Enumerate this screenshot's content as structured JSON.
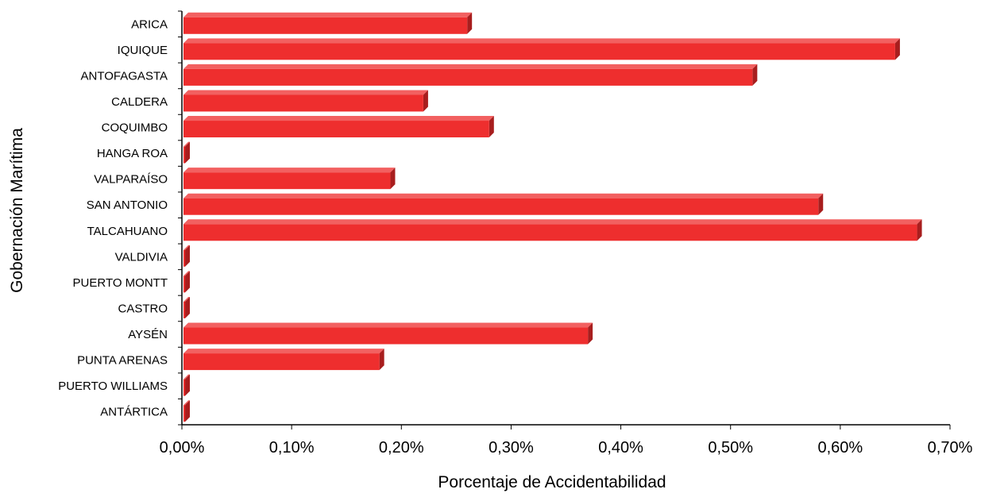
{
  "chart_data": {
    "type": "bar",
    "orientation": "horizontal",
    "categories": [
      "ARICA",
      "IQUIQUE",
      "ANTOFAGASTA",
      "CALDERA",
      "COQUIMBO",
      "HANGA ROA",
      "VALPARAÍSO",
      "SAN ANTONIO",
      "TALCAHUANO",
      "VALDIVIA",
      "PUERTO MONTT",
      "CASTRO",
      "AYSÉN",
      "PUNTA ARENAS",
      "PUERTO WILLIAMS",
      "ANTÁRTICA"
    ],
    "values": [
      0.26,
      0.65,
      0.52,
      0.22,
      0.28,
      0.0,
      0.19,
      0.58,
      0.67,
      0.0,
      0.0,
      0.0,
      0.37,
      0.18,
      0.0,
      0.0
    ],
    "title": "",
    "xlabel": "Porcentaje de Accidentabilidad",
    "ylabel": "Gobernación Marítima",
    "xlim": [
      0,
      0.7
    ],
    "xticks": [
      "0,00%",
      "0,10%",
      "0,20%",
      "0,30%",
      "0,40%",
      "0,50%",
      "0,60%",
      "0,70%"
    ],
    "grid": false,
    "legend": "none",
    "bar_color": "#ee2e2e",
    "bar_shade_color": "#a81e1e"
  }
}
